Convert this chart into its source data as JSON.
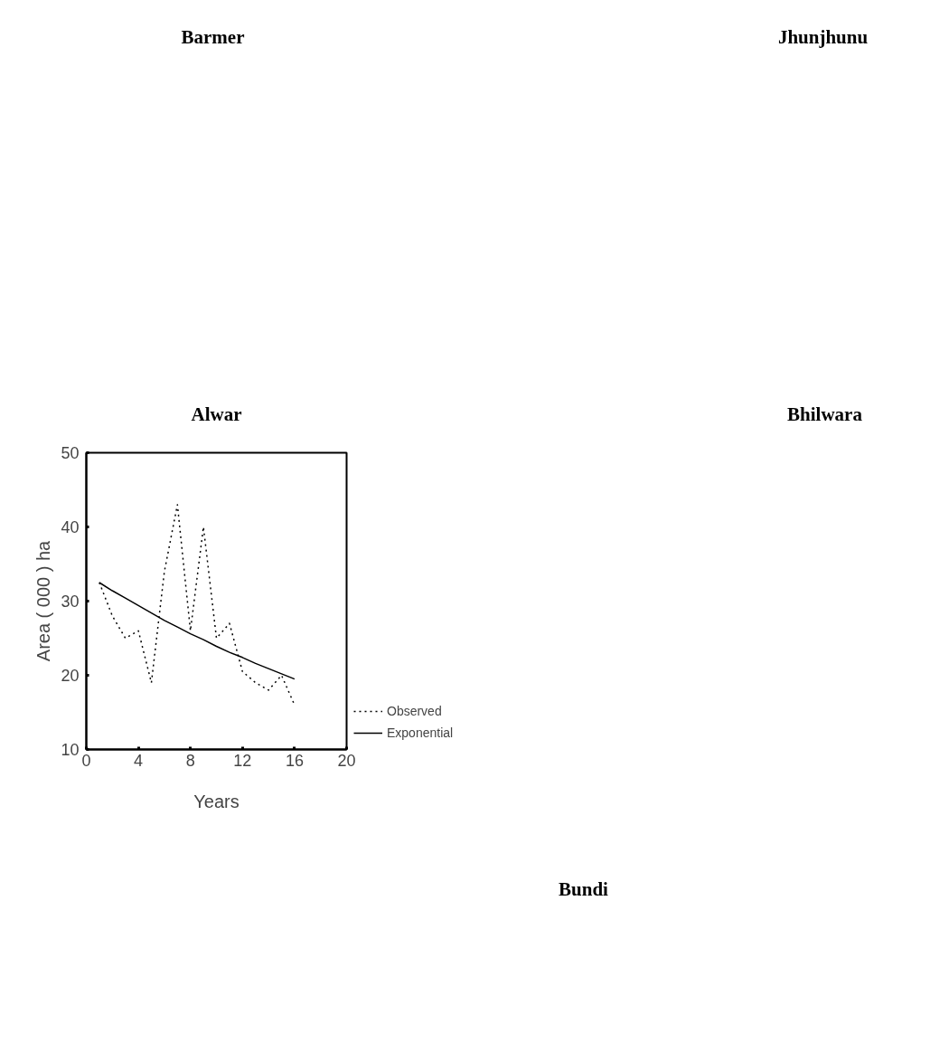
{
  "chart_data": [
    {
      "type": "other",
      "title": "Barmer"
    },
    {
      "type": "other",
      "title": "Jhunjhunu"
    },
    {
      "type": "line",
      "title": "Alwar",
      "xlabel": "Years",
      "ylabel": "Area ( 000 ) ha",
      "x": [
        1,
        2,
        3,
        4,
        5,
        6,
        7,
        8,
        9,
        10,
        11,
        12,
        13,
        14,
        15,
        16
      ],
      "series": [
        {
          "name": "Observed",
          "color": "#000000",
          "line_style": "dotted",
          "values": [
            32.5,
            28,
            25,
            26,
            19,
            34,
            43,
            26,
            40,
            25,
            27,
            20.5,
            19,
            18,
            20,
            16
          ]
        },
        {
          "name": "Exponential",
          "color": "#000000",
          "line_style": "solid",
          "values": [
            32.5,
            31.4,
            30.4,
            29.4,
            28.4,
            27.4,
            26.5,
            25.6,
            24.8,
            23.9,
            23.1,
            22.4,
            21.6,
            20.9,
            20.2,
            19.5
          ]
        }
      ],
      "xlim": [
        0,
        20
      ],
      "xticks": [
        0,
        4,
        8,
        12,
        16,
        20
      ],
      "ylim": [
        10,
        50
      ],
      "yticks": [
        10,
        20,
        30,
        40,
        50
      ],
      "legend": "right"
    },
    {
      "type": "other",
      "title": "Bhilwara"
    },
    {
      "type": "other",
      "title": "Bundi"
    }
  ]
}
